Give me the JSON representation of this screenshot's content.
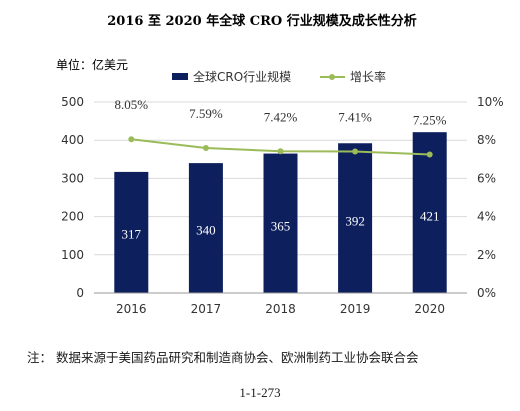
{
  "chart_data": {
    "type": "bar",
    "title": "2016 至 2020 年全球 CRO 行业规模及成长性分析",
    "unit_label": "单位：亿美元",
    "categories": [
      "2016",
      "2017",
      "2018",
      "2019",
      "2020"
    ],
    "series": [
      {
        "name": "全球CRO行业规模",
        "type": "bar",
        "axis": "left",
        "color": "#0d1f5c",
        "values": [
          317,
          340,
          365,
          392,
          421
        ],
        "labels": [
          "317",
          "340",
          "365",
          "392",
          "421"
        ]
      },
      {
        "name": "增长率",
        "type": "line",
        "axis": "right",
        "color": "#9bbb59",
        "values": [
          8.05,
          7.59,
          7.42,
          7.41,
          7.25
        ],
        "labels": [
          "8.05%",
          "7.59%",
          "7.42%",
          "7.41%",
          "7.25%"
        ]
      }
    ],
    "ylim_left": [
      0,
      500
    ],
    "yticks_left": [
      "0",
      "100",
      "200",
      "300",
      "400",
      "500"
    ],
    "ylim_right": [
      0,
      10
    ],
    "yticks_right": [
      "0%",
      "2%",
      "4%",
      "6%",
      "8%",
      "10%"
    ],
    "grid": true,
    "legend": "top-center"
  },
  "footnote": "注：  数据来源于美国药品研究和制造商协会、欧洲制药工业协会联合会",
  "page_number": "1-1-273"
}
